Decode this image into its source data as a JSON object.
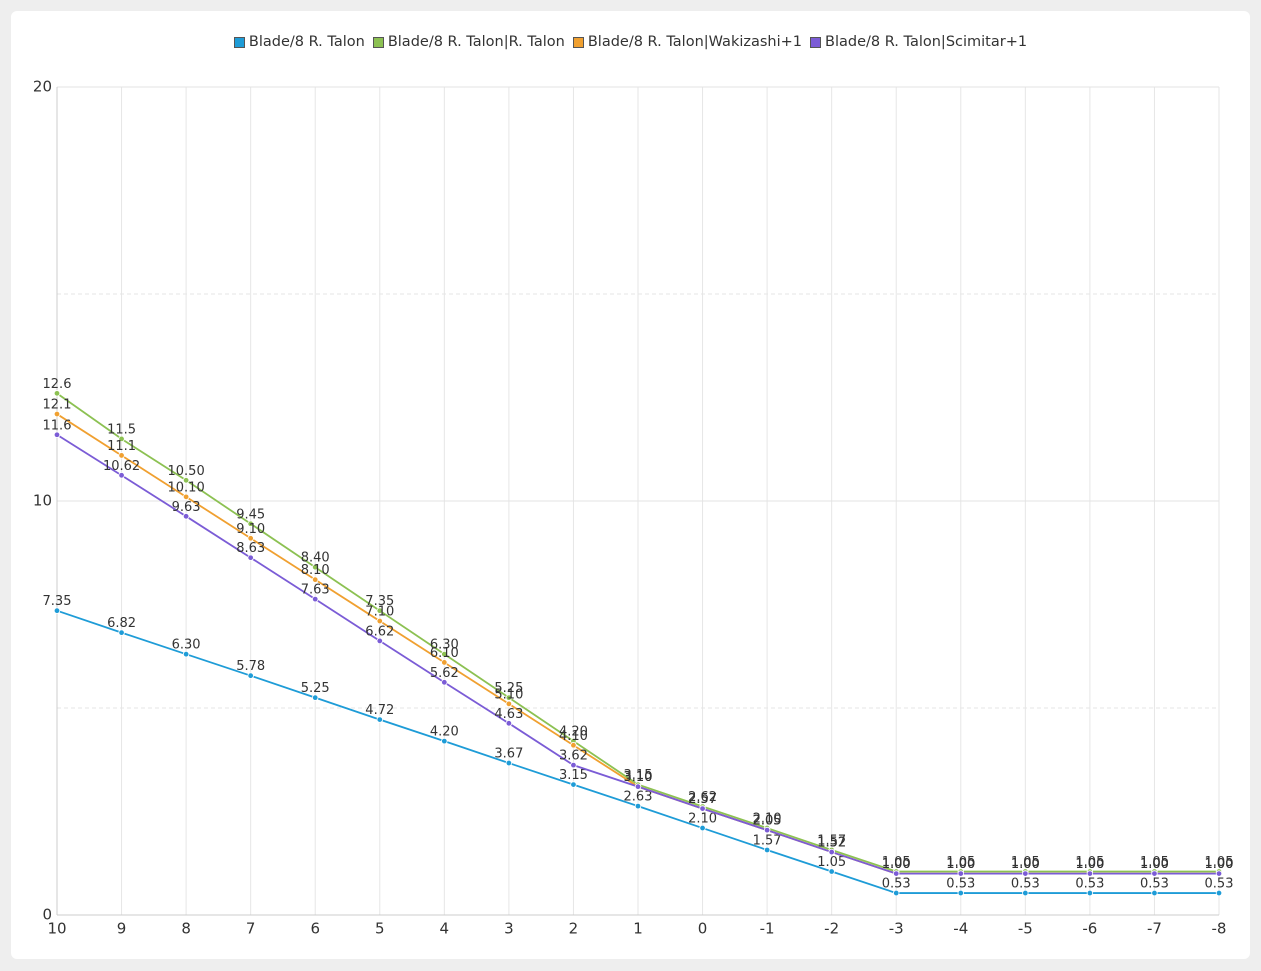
{
  "chart_data": {
    "type": "line",
    "categories": [
      "10",
      "9",
      "8",
      "7",
      "6",
      "5",
      "4",
      "3",
      "2",
      "1",
      "0",
      "-1",
      "-2",
      "-3",
      "-4",
      "-5",
      "-6",
      "-7",
      "-8"
    ],
    "series": [
      {
        "name": "Blade/8 R. Talon",
        "color": "#1e9cd7",
        "values": [
          7.35,
          6.82,
          6.3,
          5.78,
          5.25,
          4.72,
          4.2,
          3.67,
          3.15,
          2.63,
          2.1,
          1.57,
          1.05,
          0.53,
          0.53,
          0.53,
          0.53,
          0.53,
          0.53
        ],
        "value_labels": [
          "7.35",
          "6.82",
          "6.30",
          "5.78",
          "5.25",
          "4.72",
          "4.20",
          "3.67",
          "3.15",
          "2.63",
          "2.10",
          "1.57",
          "1.05",
          "0.53",
          "0.53",
          "0.53",
          "0.53",
          "0.53",
          "0.53"
        ]
      },
      {
        "name": "Blade/8 R. Talon|R. Talon",
        "color": "#8cc152",
        "values": [
          12.6,
          11.5,
          10.5,
          9.45,
          8.4,
          7.35,
          6.3,
          5.25,
          4.2,
          3.15,
          2.62,
          2.1,
          1.57,
          1.05,
          1.05,
          1.05,
          1.05,
          1.05,
          1.05
        ],
        "value_labels": [
          "12.6",
          "11.5",
          "10.50",
          "9.45",
          "8.40",
          "7.35",
          "6.30",
          "5.25",
          "4.20",
          "3.15",
          "2.62",
          "2.10",
          "1.57",
          "1.05",
          "1.05",
          "1.05",
          "1.05",
          "1.05",
          "1.05"
        ]
      },
      {
        "name": "Blade/8 R. Talon|Wakizashi+1",
        "color": "#f0a030",
        "values": [
          12.1,
          11.1,
          10.1,
          9.1,
          8.1,
          7.1,
          6.1,
          5.1,
          4.1,
          3.1,
          2.57,
          2.05,
          1.52,
          1,
          1,
          1,
          1,
          1,
          1
        ],
        "value_labels": [
          "12.1",
          "11.1",
          "10.10",
          "9.10",
          "8.10",
          "7.10",
          "6.10",
          "5.10",
          "4.10",
          "3.10",
          "2.57",
          "2.05",
          "1.52",
          "1.00",
          "1.00",
          "1.00",
          "1.00",
          "1.00",
          "1.00"
        ]
      },
      {
        "name": "Blade/8 R. Talon|Scimitar+1",
        "color": "#7b5cd6",
        "values": [
          11.6,
          10.62,
          9.63,
          8.63,
          7.63,
          6.62,
          5.62,
          4.63,
          3.62,
          3.1,
          2.57,
          2.05,
          1.52,
          1,
          1,
          1,
          1,
          1,
          1
        ],
        "value_labels": [
          "11.6",
          "10.62",
          "9.63",
          "8.63",
          "7.63",
          "6.62",
          "5.62",
          "4.63",
          "3.62",
          "3.10",
          "2.57",
          "2.05",
          "1.52",
          "1.00",
          "1.00",
          "1.00",
          "1.00",
          "1.00",
          "1.00"
        ]
      }
    ],
    "ylim": [
      0,
      20
    ],
    "yticks": [
      0,
      10,
      20
    ],
    "minor_yticks": [
      5,
      15
    ],
    "grid": true,
    "legend": "top"
  }
}
